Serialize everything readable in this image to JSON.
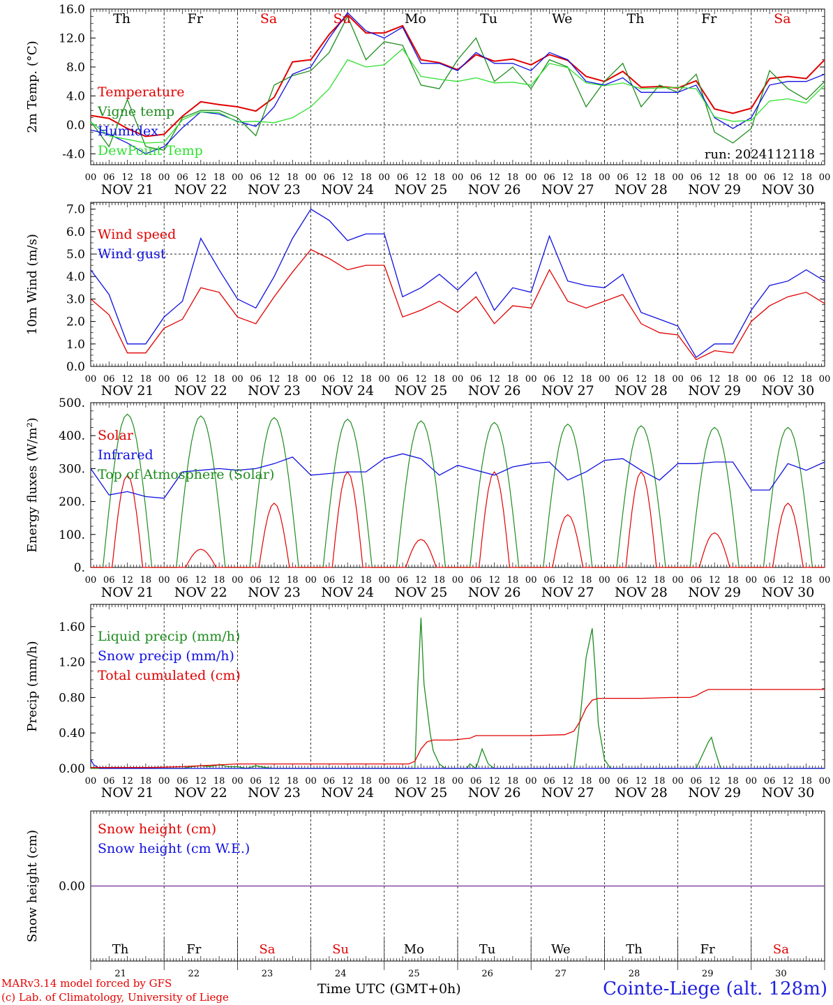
{
  "footer": {
    "model_line": "MARv3.14 model forced by GFS",
    "copyright_line": "(c) Lab. of Climatology, University of Liege",
    "time_axis_label": "Time UTC (GMT+0h)",
    "station": "Cointe-Liege (alt. 128m)"
  },
  "weekdays": [
    "Th",
    "Fr",
    "Sa",
    "Su",
    "Mo",
    "Tu",
    "We",
    "Th",
    "Fr",
    "Sa"
  ],
  "weekend_flags": [
    false,
    false,
    true,
    true,
    false,
    false,
    false,
    false,
    false,
    true
  ],
  "day_labels": [
    "NOV 21",
    "NOV 22",
    "NOV 23",
    "NOV 24",
    "NOV 25",
    "NOV 26",
    "NOV 27",
    "NOV 28",
    "NOV 29",
    "NOV 30"
  ],
  "day_numbers": [
    "21",
    "22",
    "23",
    "24",
    "25",
    "26",
    "27",
    "28",
    "29",
    "30"
  ],
  "hour_ticks": [
    "00",
    "06",
    "12",
    "18"
  ],
  "hour_end": "00",
  "colors": {
    "red": "#e00000",
    "darkgreen": "#1e8c1e",
    "blue": "#1010e0",
    "lightgreen": "#30e030",
    "purple": "#8040a0"
  },
  "chart_data": [
    {
      "type": "line",
      "ylabel": "2m Temp. (°C)",
      "ylim": [
        -5.5,
        16
      ],
      "yticks": [
        -4.0,
        0.0,
        4.0,
        8.0,
        12.0,
        16.0
      ],
      "ytick_labels": [
        "-4.0",
        "0.0",
        "4.0",
        "8.0",
        "12.0",
        "16.0"
      ],
      "ref_line": 0,
      "annotation": "run: 2024112118",
      "x_unit": "hours since NOV 21 00 UTC",
      "legend": [
        "Temperature",
        "Vigne temp",
        "Humidex",
        "DewPoint Temp"
      ],
      "series": [
        {
          "name": "Temperature",
          "color": "red",
          "x": [
            0,
            6,
            12,
            18,
            24,
            30,
            36,
            42,
            48,
            54,
            60,
            66,
            72,
            78,
            84,
            90,
            96,
            102,
            108,
            114,
            120,
            126,
            132,
            138,
            144,
            150,
            156,
            162,
            168,
            174,
            180,
            186,
            192,
            198,
            204,
            210,
            216,
            222,
            228,
            234,
            240
          ],
          "y": [
            1.3,
            0.9,
            -0.5,
            -1.6,
            -1.3,
            1.2,
            3.2,
            2.8,
            2.5,
            1.9,
            3.8,
            8.7,
            9.0,
            12.5,
            15.2,
            12.7,
            12.7,
            13.7,
            9.0,
            8.6,
            7.6,
            9.7,
            8.8,
            9.1,
            8.3,
            9.7,
            8.9,
            6.7,
            6.0,
            7.4,
            5.2,
            5.3,
            5.1,
            6.1,
            2.2,
            1.6,
            2.3,
            6.4,
            6.7,
            6.4,
            9.0
          ]
        },
        {
          "name": "Vigne temp",
          "color": "darkgreen",
          "x": [
            0,
            6,
            12,
            18,
            24,
            30,
            36,
            42,
            48,
            54,
            60,
            66,
            72,
            78,
            84,
            90,
            96,
            102,
            108,
            114,
            120,
            126,
            132,
            138,
            144,
            150,
            156,
            162,
            168,
            174,
            180,
            186,
            192,
            198,
            204,
            210,
            216,
            222,
            228,
            234,
            240
          ],
          "y": [
            0.5,
            -3.0,
            3.5,
            -3.0,
            -3.5,
            1.0,
            2.0,
            2.0,
            1.0,
            -1.5,
            5.5,
            6.8,
            7.5,
            10.0,
            15.0,
            9.0,
            11.5,
            11.0,
            5.5,
            5.0,
            9.0,
            12.0,
            6.0,
            8.0,
            5.0,
            9.0,
            8.0,
            2.5,
            6.0,
            8.5,
            2.5,
            5.5,
            4.5,
            7.0,
            -1.0,
            -2.5,
            -0.5,
            7.5,
            5.0,
            3.5,
            6.0
          ]
        },
        {
          "name": "Humidex",
          "color": "blue",
          "x": [
            0,
            6,
            12,
            18,
            24,
            30,
            36,
            42,
            48,
            54,
            60,
            66,
            72,
            78,
            84,
            90,
            96,
            102,
            108,
            114,
            120,
            126,
            132,
            138,
            144,
            150,
            156,
            162,
            168,
            174,
            180,
            186,
            192,
            198,
            204,
            210,
            216,
            222,
            228,
            234,
            240
          ],
          "y": [
            -0.7,
            -1.3,
            -2.5,
            -4.0,
            -3.0,
            -0.4,
            1.8,
            1.5,
            0.5,
            -0.2,
            2.5,
            7.0,
            8.0,
            12.0,
            15.5,
            13.0,
            12.0,
            13.5,
            8.5,
            8.5,
            7.5,
            10.0,
            8.5,
            8.5,
            7.5,
            10.0,
            9.0,
            6.0,
            5.5,
            6.5,
            4.5,
            4.5,
            4.5,
            5.5,
            1.0,
            -0.5,
            1.0,
            5.5,
            6.0,
            6.0,
            7.0
          ]
        },
        {
          "name": "DewPoint Temp",
          "color": "lightgreen",
          "x": [
            0,
            6,
            12,
            18,
            24,
            30,
            36,
            42,
            48,
            54,
            60,
            66,
            72,
            78,
            84,
            90,
            96,
            102,
            108,
            114,
            120,
            126,
            132,
            138,
            144,
            150,
            156,
            162,
            168,
            174,
            180,
            186,
            192,
            198,
            204,
            210,
            216,
            222,
            228,
            234,
            240
          ],
          "y": [
            0.4,
            -1.5,
            -2.0,
            -2.5,
            -2.4,
            0.7,
            1.8,
            1.7,
            0.4,
            0.5,
            0.3,
            1.0,
            2.5,
            5.0,
            9.0,
            8.0,
            8.3,
            10.5,
            6.7,
            6.3,
            6.0,
            6.5,
            5.8,
            5.9,
            5.5,
            8.5,
            7.9,
            5.8,
            5.4,
            5.8,
            5.0,
            5.1,
            5.2,
            5.0,
            1.1,
            0.5,
            0.6,
            3.3,
            3.6,
            3.0,
            5.5
          ]
        }
      ]
    },
    {
      "type": "line",
      "ylabel": "10m Wind (m/s)",
      "ylim": [
        0,
        7.3
      ],
      "yticks": [
        0,
        1,
        2,
        3,
        4,
        5,
        6,
        7
      ],
      "ytick_labels": [
        "0.0",
        "1.0",
        "2.0",
        "3.0",
        "4.0",
        "5.0",
        "6.0",
        "7.0"
      ],
      "ref_line": 5,
      "x_unit": "hours since NOV 21 00 UTC",
      "legend": [
        "Wind speed",
        "Wind gust"
      ],
      "series": [
        {
          "name": "Wind speed",
          "color": "red",
          "x": [
            0,
            6,
            12,
            18,
            24,
            30,
            36,
            42,
            48,
            54,
            60,
            66,
            72,
            78,
            84,
            90,
            96,
            102,
            108,
            114,
            120,
            126,
            132,
            138,
            144,
            150,
            156,
            162,
            168,
            174,
            180,
            186,
            192,
            198,
            204,
            210,
            216,
            222,
            228,
            234,
            240
          ],
          "y": [
            3.0,
            2.3,
            0.6,
            0.6,
            1.7,
            2.1,
            3.5,
            3.3,
            2.2,
            1.9,
            3.1,
            4.2,
            5.2,
            4.8,
            4.3,
            4.5,
            4.5,
            2.2,
            2.5,
            2.9,
            2.4,
            3.1,
            1.9,
            2.7,
            2.6,
            4.3,
            2.9,
            2.6,
            2.9,
            3.2,
            1.9,
            1.5,
            1.4,
            0.3,
            0.7,
            0.6,
            2.0,
            2.7,
            3.1,
            3.3,
            2.8
          ]
        },
        {
          "name": "Wind gust",
          "color": "blue",
          "x": [
            0,
            6,
            12,
            18,
            24,
            30,
            36,
            42,
            48,
            54,
            60,
            66,
            72,
            78,
            84,
            90,
            96,
            102,
            108,
            114,
            120,
            126,
            132,
            138,
            144,
            150,
            156,
            162,
            168,
            174,
            180,
            186,
            192,
            198,
            204,
            210,
            216,
            222,
            228,
            234,
            240
          ],
          "y": [
            4.3,
            3.2,
            1.0,
            1.0,
            2.2,
            2.9,
            5.7,
            4.3,
            3.0,
            2.6,
            4.0,
            5.7,
            7.0,
            6.5,
            5.6,
            5.9,
            5.9,
            3.1,
            3.5,
            4.1,
            3.4,
            4.2,
            2.5,
            3.5,
            3.3,
            5.8,
            3.8,
            3.6,
            3.5,
            4.1,
            2.4,
            2.1,
            1.8,
            0.4,
            1.0,
            1.0,
            2.5,
            3.6,
            3.8,
            4.3,
            3.8
          ]
        }
      ]
    },
    {
      "type": "line",
      "ylabel": "Energy fluxes (W/m²)",
      "ylim": [
        0,
        500
      ],
      "yticks": [
        0,
        100,
        200,
        300,
        400,
        500
      ],
      "ytick_labels": [
        "0.",
        "100.",
        "200.",
        "300.",
        "400.",
        "500."
      ],
      "x_unit": "hours since NOV 21 00 UTC",
      "legend": [
        "Solar",
        "Infrared",
        "Top of Atmosphere (Solar)"
      ],
      "solar_peaks": [
        280,
        55,
        195,
        290,
        85,
        290,
        160,
        290,
        105,
        195
      ],
      "toa_peaks": [
        465,
        460,
        455,
        450,
        445,
        440,
        435,
        430,
        425,
        425
      ],
      "series": [
        {
          "name": "Infrared",
          "color": "blue",
          "x": [
            0,
            6,
            12,
            18,
            24,
            30,
            36,
            42,
            48,
            54,
            60,
            66,
            72,
            78,
            84,
            90,
            96,
            102,
            108,
            114,
            120,
            126,
            132,
            138,
            144,
            150,
            156,
            162,
            168,
            174,
            180,
            186,
            192,
            198,
            204,
            210,
            216,
            222,
            228,
            234,
            240
          ],
          "y": [
            300,
            220,
            230,
            215,
            210,
            290,
            295,
            300,
            295,
            300,
            315,
            335,
            280,
            285,
            290,
            290,
            330,
            345,
            330,
            280,
            310,
            295,
            280,
            305,
            315,
            320,
            265,
            290,
            325,
            330,
            295,
            265,
            315,
            315,
            320,
            320,
            235,
            235,
            315,
            295,
            320
          ]
        }
      ]
    },
    {
      "type": "line",
      "ylabel": "Precip (mm/h)",
      "ylim": [
        0,
        1.85
      ],
      "yticks": [
        0,
        0.4,
        0.8,
        1.2,
        1.6
      ],
      "ytick_labels": [
        "0.00",
        "0.40",
        "0.80",
        "1.20",
        "1.60"
      ],
      "x_unit": "hours since NOV 21 00 UTC",
      "legend": [
        "Liquid precip (mm/h)",
        "Snow precip (mm/h)",
        "Total cumulated (cm)"
      ],
      "series": [
        {
          "name": "Liquid precip (mm/h)",
          "color": "darkgreen",
          "x": [
            0,
            30,
            33,
            36,
            39,
            42,
            45,
            48,
            51,
            54,
            57,
            60,
            104,
            106,
            107,
            108,
            109,
            111,
            112,
            114,
            116,
            123,
            124,
            126,
            128,
            130,
            132,
            135,
            156,
            158,
            160,
            162,
            164,
            165,
            166,
            168,
            170,
            198,
            200,
            202,
            203,
            204,
            206,
            240
          ],
          "y": [
            0,
            0,
            0.02,
            0.03,
            0.02,
            0.04,
            0.02,
            0.02,
            0,
            0.03,
            0.01,
            0,
            0,
            0,
            0.95,
            1.7,
            0.95,
            0.4,
            0.2,
            0.05,
            0,
            0,
            0.05,
            0,
            0.22,
            0.05,
            0,
            0,
            0,
            0,
            0.55,
            1.25,
            1.58,
            1.1,
            0.5,
            0.1,
            0,
            0,
            0.15,
            0.3,
            0.35,
            0.22,
            0,
            0
          ]
        },
        {
          "name": "Snow precip (mm/h)",
          "color": "blue",
          "x": [
            0,
            1,
            2,
            3,
            240
          ],
          "y": [
            0.1,
            0.04,
            0.02,
            0,
            0
          ]
        },
        {
          "name": "Total cumulated (cm)",
          "color": "red",
          "x": [
            0,
            20,
            30,
            36,
            42,
            48,
            60,
            90,
            104,
            106,
            108,
            110,
            112,
            118,
            124,
            126,
            128,
            132,
            144,
            155,
            158,
            160,
            162,
            164,
            166,
            168,
            172,
            180,
            190,
            196,
            198,
            200,
            202,
            206,
            216,
            230,
            240
          ],
          "y": [
            0.01,
            0.01,
            0.02,
            0.03,
            0.04,
            0.05,
            0.05,
            0.05,
            0.05,
            0.08,
            0.22,
            0.3,
            0.32,
            0.32,
            0.34,
            0.37,
            0.37,
            0.37,
            0.37,
            0.38,
            0.42,
            0.53,
            0.68,
            0.77,
            0.79,
            0.79,
            0.79,
            0.79,
            0.8,
            0.8,
            0.82,
            0.86,
            0.89,
            0.89,
            0.89,
            0.89,
            0.89
          ]
        }
      ]
    },
    {
      "type": "line",
      "ylabel": "Snow height (cm)",
      "yticks": [
        0
      ],
      "ytick_labels": [
        "0.00"
      ],
      "x_unit": "hours since NOV 21 00 UTC",
      "legend": [
        "Snow height (cm)",
        "Snow height (cm W.E.)"
      ],
      "series": [
        {
          "name": "Snow height (cm)",
          "color": "red",
          "x": [
            0,
            240
          ],
          "y": [
            0,
            0
          ]
        },
        {
          "name": "Snow height (cm W.E.)",
          "color": "blue",
          "x": [
            0,
            240
          ],
          "y": [
            0,
            0
          ]
        }
      ]
    }
  ]
}
